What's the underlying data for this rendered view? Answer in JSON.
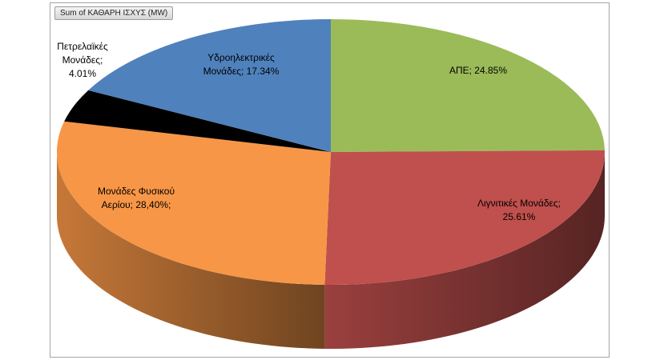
{
  "field_button": "Sum of ΚΑΘΑΡΗ ΙΣΧΥΣ (MW)",
  "chart_data": {
    "type": "pie",
    "title": "",
    "categories": [
      "ΑΠΕ",
      "Λιγνιτικές Μονάδες",
      "Μονάδες Φυσικού Αερίου",
      "Πετρελαϊκές Μονάδες",
      "Υδροηλεκτρικές Μονάδες"
    ],
    "values": [
      24.85,
      25.61,
      28.4,
      4.01,
      17.34
    ],
    "colors": [
      "#9bbb59",
      "#c0504d",
      "#f79646",
      "#000000",
      "#4f81bd"
    ],
    "labels": [
      [
        "ΑΠΕ; 24.85%"
      ],
      [
        "Λιγνιτικές Μονάδες;",
        "25.61%"
      ],
      [
        "Μονάδες Φυσικού",
        "Αερίου; 28,40%;"
      ],
      [
        "Πετρελαϊκές",
        "Μονάδες;",
        "4.01%"
      ],
      [
        "Υδροηλεκτρικές",
        "Μονάδες; 17.34%"
      ]
    ]
  }
}
